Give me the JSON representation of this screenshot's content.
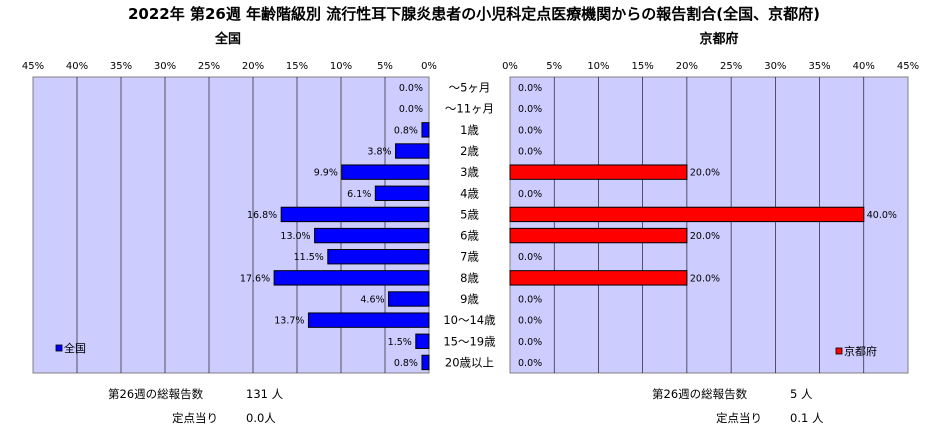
{
  "chart_data": {
    "type": "bar",
    "title": "2022年 第26週 年齢階級別 流行性耳下腺炎患者の小児科定点医療機関からの報告割合(全国、京都府)",
    "categories": [
      "～5ヶ月",
      "～11ヶ月",
      "1歳",
      "2歳",
      "3歳",
      "4歳",
      "5歳",
      "6歳",
      "7歳",
      "8歳",
      "9歳",
      "10～14歳",
      "15～19歳",
      "20歳以上"
    ],
    "xlim": [
      0,
      45
    ],
    "x_ticks": [
      "0%",
      "5%",
      "10%",
      "15%",
      "20%",
      "25%",
      "30%",
      "35%",
      "40%",
      "45%"
    ],
    "series": [
      {
        "name": "全国",
        "subtitle": "全国",
        "values": [
          0.0,
          0.0,
          0.8,
          3.8,
          9.9,
          6.1,
          16.8,
          13.0,
          11.5,
          17.6,
          4.6,
          13.7,
          1.5,
          0.8
        ],
        "labels": [
          "0.0%",
          "0.0%",
          "0.8%",
          "3.8%",
          "9.9%",
          "6.1%",
          "16.8%",
          "13.0%",
          "11.5%",
          "17.6%",
          "4.6%",
          "13.7%",
          "1.5%",
          "0.8%"
        ],
        "color": "#0000ff"
      },
      {
        "name": "京都府",
        "subtitle": "京都府",
        "values": [
          0.0,
          0.0,
          0.0,
          0.0,
          20.0,
          0.0,
          40.0,
          20.0,
          0.0,
          20.0,
          0.0,
          0.0,
          0.0,
          0.0
        ],
        "labels": [
          "0.0%",
          "0.0%",
          "0.0%",
          "0.0%",
          "20.0%",
          "0.0%",
          "40.0%",
          "20.0%",
          "0.0%",
          "20.0%",
          "0.0%",
          "0.0%",
          "0.0%",
          "0.0%"
        ],
        "color": "#ff0000"
      }
    ],
    "plot_background": "#ccccff",
    "grid": true,
    "legend": [
      "bottom-left",
      "bottom-right"
    ]
  },
  "footer": {
    "left": {
      "total_label": "第26週の総報告数",
      "total_value": "131 人",
      "per_label": "定点当り",
      "per_value": "0.0人"
    },
    "right": {
      "total_label": "第26週の総報告数",
      "total_value": "5 人",
      "per_label": "定点当り",
      "per_value": "0.1 人"
    }
  }
}
